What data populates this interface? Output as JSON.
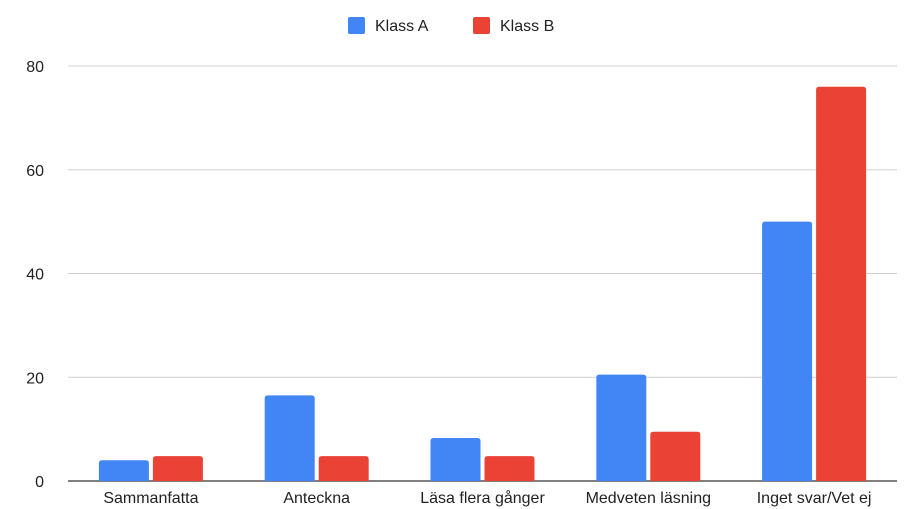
{
  "chart_data": {
    "type": "bar",
    "title": "",
    "xlabel": "",
    "ylabel": "",
    "categories": [
      "Sammanfatta",
      "Anteckna",
      "Läsa flera gånger",
      "Medveten läsning",
      "Inget svar/Vet ej"
    ],
    "series": [
      {
        "name": "Klass A",
        "color": "#4285F4",
        "values": [
          4,
          16.5,
          8.3,
          20.5,
          50
        ]
      },
      {
        "name": "Klass B",
        "color": "#EA4335",
        "values": [
          4.8,
          4.8,
          4.8,
          9.5,
          76
        ]
      }
    ],
    "ylim": [
      0,
      80
    ],
    "yticks": [
      0,
      20,
      40,
      60,
      80
    ],
    "grid": true,
    "legend": "top-center"
  }
}
